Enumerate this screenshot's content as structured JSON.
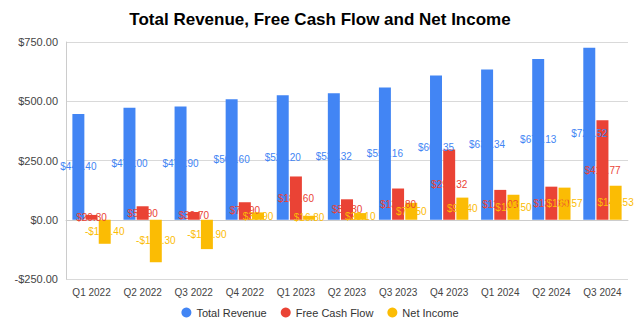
{
  "chart_data": {
    "type": "bar",
    "title": "Total Revenue, Free Cash Flow and Net Income",
    "categories": [
      "Q1 2022",
      "Q2 2022",
      "Q3 2022",
      "Q4 2022",
      "Q1 2023",
      "Q2 2023",
      "Q3 2023",
      "Q4 2023",
      "Q1 2024",
      "Q2 2024",
      "Q3 2024"
    ],
    "series": [
      {
        "name": "Total Revenue",
        "color": "#4285f4",
        "values": [
          446.4,
          473.0,
          477.9,
          508.6,
          525.2,
          533.32,
          558.16,
          608.35,
          634.34,
          678.13,
          725.52
        ],
        "value_labels": [
          "$446.40",
          "$473.00",
          "$477.90",
          "$508.60",
          "$525.20",
          "$533.32",
          "$558.16",
          "$608.35",
          "$634.34",
          "$678.13",
          "$725.52"
        ]
      },
      {
        "name": "Free Cash Flow",
        "color": "#ea4335",
        "values": [
          20.3,
          56.9,
          32.7,
          73.9,
          182.6,
          86.3,
          131.8,
          296.32,
          126.03,
          139.6,
          419.77
        ],
        "value_labels": [
          "$20.30",
          "$56.90",
          "$32.70",
          "$73.90",
          "$182.60",
          "$86.30",
          "$131.80",
          "$296.32",
          "$126.03",
          "$139.60",
          "$419.77"
        ]
      },
      {
        "name": "Net Income",
        "color": "#fbbc04",
        "values": [
          -101.4,
          -179.3,
          -123.9,
          30.9,
          16.8,
          28.1,
          71.5,
          93.4,
          105.5,
          135.57,
          143.53
        ],
        "value_labels": [
          "-$101.40",
          "-$179.30",
          "-$123.90",
          "$30.90",
          "$16.80",
          "$28.10",
          "$71.50",
          "$93.40",
          "$105.50",
          "$135.57",
          "$143.53"
        ]
      }
    ],
    "ylim": [
      -250,
      750
    ],
    "yticks": [
      {
        "value": -250,
        "label": "-$250.00"
      },
      {
        "value": 0,
        "label": "$0.00"
      },
      {
        "value": 250,
        "label": "$250.00"
      },
      {
        "value": 500,
        "label": "$500.00"
      },
      {
        "value": 750,
        "label": "$750.00"
      }
    ],
    "grid": true,
    "legend": "bottom",
    "data_labels": true
  }
}
